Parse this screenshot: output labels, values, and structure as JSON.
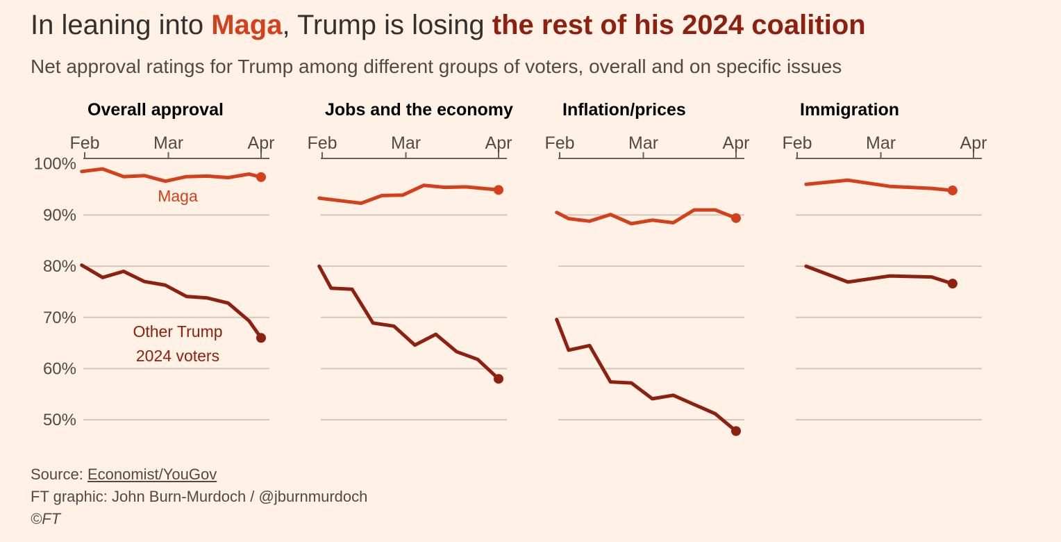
{
  "headline": {
    "part1": "In leaning into ",
    "part2": "Maga",
    "part3": ", Trump is losing ",
    "part4": "the rest of his 2024 coalition"
  },
  "subtitle": "Net approval ratings for Trump among different groups of voters, overall and on specific issues",
  "colors": {
    "background": "#fff1e5",
    "maga": "#d4401a",
    "other": "#8e2010",
    "grid": "#d3c7ba",
    "axis": "#66605c"
  },
  "footer": {
    "source_prefix": "Source: ",
    "source_link": "Economist/YouGov",
    "credit": "FT graphic: John Burn-Murdoch / @jburnmurdoch",
    "copyright": "©FT"
  },
  "chart_data": {
    "type": "line",
    "x_range": [
      "2025-02-01",
      "2025-04-01"
    ],
    "x_ticks": [
      {
        "label": "Feb",
        "date": "2025-02-01"
      },
      {
        "label": "Mar",
        "date": "2025-03-01"
      },
      {
        "label": "Apr",
        "date": "2025-04-01"
      }
    ],
    "y_range": [
      45,
      102
    ],
    "y_ticks": [
      100,
      90,
      80,
      70,
      60,
      50
    ],
    "y_tick_labels": [
      "100%",
      "90%",
      "80%",
      "70%",
      "60%",
      "50%"
    ],
    "grid": true,
    "series_labels": {
      "maga": "Maga",
      "other_line1": "Other Trump",
      "other_line2": "2024 voters"
    },
    "panels": [
      {
        "title": "Overall approval",
        "series": [
          {
            "key": "maga",
            "x": [
              "2025-01-31",
              "2025-02-07",
              "2025-02-14",
              "2025-02-21",
              "2025-02-28",
              "2025-03-07",
              "2025-03-14",
              "2025-03-21",
              "2025-03-28",
              "2025-04-01"
            ],
            "y": [
              98.5,
              99.0,
              97.5,
              97.7,
              96.6,
              97.5,
              97.6,
              97.3,
              98.0,
              97.4
            ]
          },
          {
            "key": "other",
            "x": [
              "2025-01-31",
              "2025-02-07",
              "2025-02-14",
              "2025-02-21",
              "2025-02-28",
              "2025-03-07",
              "2025-03-14",
              "2025-03-21",
              "2025-03-28",
              "2025-04-01"
            ],
            "y": [
              80.2,
              77.8,
              79.0,
              77.0,
              76.3,
              74.1,
              73.8,
              72.8,
              69.3,
              66.0
            ]
          }
        ]
      },
      {
        "title": "Jobs and the economy",
        "series": [
          {
            "key": "maga",
            "x": [
              "2025-01-31",
              "2025-02-07",
              "2025-02-14",
              "2025-02-21",
              "2025-02-28",
              "2025-03-07",
              "2025-03-14",
              "2025-03-21",
              "2025-04-01"
            ],
            "y": [
              93.3,
              92.8,
              92.3,
              93.8,
              93.9,
              95.8,
              95.4,
              95.5,
              94.9
            ]
          },
          {
            "key": "other",
            "x": [
              "2025-01-31",
              "2025-02-04",
              "2025-02-11",
              "2025-02-18",
              "2025-02-25",
              "2025-03-04",
              "2025-03-11",
              "2025-03-18",
              "2025-03-25",
              "2025-04-01"
            ],
            "y": [
              80.0,
              75.7,
              75.5,
              68.9,
              68.3,
              64.6,
              66.7,
              63.3,
              61.8,
              58.0
            ]
          }
        ]
      },
      {
        "title": "Inflation/prices",
        "series": [
          {
            "key": "maga",
            "x": [
              "2025-01-31",
              "2025-02-04",
              "2025-02-11",
              "2025-02-18",
              "2025-02-25",
              "2025-03-04",
              "2025-03-11",
              "2025-03-18",
              "2025-03-25",
              "2025-04-01"
            ],
            "y": [
              90.5,
              89.3,
              88.8,
              90.1,
              88.3,
              89.0,
              88.5,
              91.0,
              91.0,
              89.4
            ]
          },
          {
            "key": "other",
            "x": [
              "2025-01-31",
              "2025-02-04",
              "2025-02-11",
              "2025-02-18",
              "2025-02-25",
              "2025-03-04",
              "2025-03-11",
              "2025-03-18",
              "2025-03-25",
              "2025-04-01"
            ],
            "y": [
              69.6,
              63.6,
              64.5,
              57.4,
              57.2,
              54.1,
              54.8,
              53.0,
              51.2,
              47.8
            ]
          }
        ]
      },
      {
        "title": "Immigration",
        "series": [
          {
            "key": "maga",
            "x": [
              "2025-02-04",
              "2025-02-18",
              "2025-03-04",
              "2025-03-18",
              "2025-03-25"
            ],
            "y": [
              96.0,
              96.8,
              95.6,
              95.2,
              94.8
            ]
          },
          {
            "key": "other",
            "x": [
              "2025-02-04",
              "2025-02-18",
              "2025-03-04",
              "2025-03-18",
              "2025-03-25"
            ],
            "y": [
              80.0,
              76.9,
              78.1,
              77.9,
              76.6
            ]
          }
        ]
      }
    ]
  }
}
